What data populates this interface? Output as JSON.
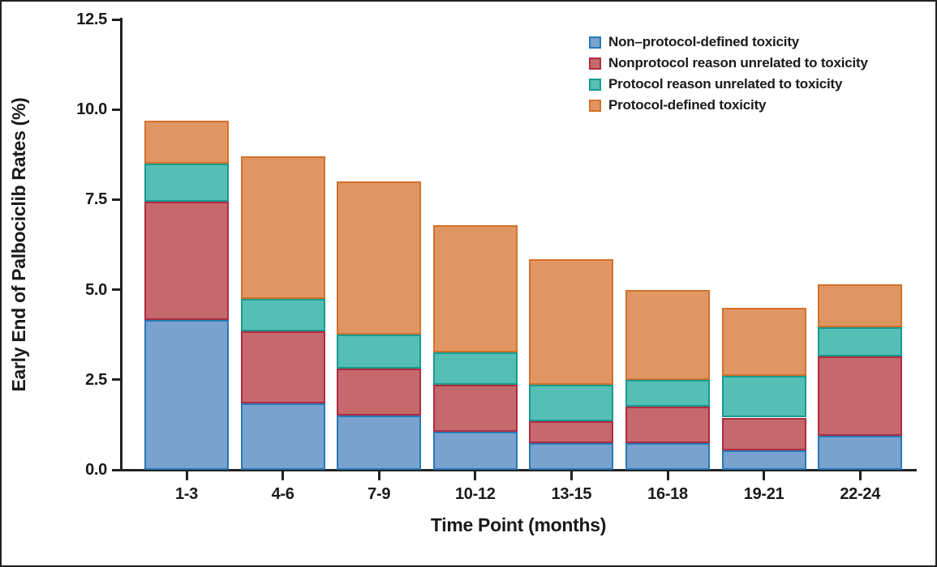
{
  "chart_data": {
    "type": "bar",
    "stacked": true,
    "title": "",
    "xlabel": "Time Point (months)",
    "ylabel": "Early End of Palbociclib Rates (%)",
    "categories": [
      "1-3",
      "4-6",
      "7-9",
      "10-12",
      "13-15",
      "16-18",
      "19-21",
      "22-24"
    ],
    "series": [
      {
        "name": "Non–protocol-defined toxicity",
        "fill": "#79A3CE",
        "border": "#2878B8",
        "values": [
          4.15,
          1.85,
          1.5,
          1.05,
          0.75,
          0.75,
          0.55,
          0.95
        ]
      },
      {
        "name": "Nonprotocol reason unrelated to toxicity",
        "fill": "#C5696D",
        "border": "#AF2B42",
        "values": [
          3.3,
          2.0,
          1.3,
          1.3,
          0.6,
          1.0,
          0.9,
          2.2
        ]
      },
      {
        "name": "Protocol reason unrelated to toxicity",
        "fill": "#56BFB5",
        "border": "#169B90",
        "values": [
          1.05,
          0.9,
          0.95,
          0.9,
          1.0,
          0.75,
          1.15,
          0.8
        ]
      },
      {
        "name": "Protocol-defined toxicity",
        "fill": "#E09663",
        "border": "#D4712B",
        "values": [
          1.2,
          3.95,
          4.25,
          3.55,
          3.5,
          2.5,
          1.9,
          1.2
        ]
      }
    ],
    "bar_totals": [
      9.7,
      8.7,
      8.0,
      6.8,
      5.85,
      5.0,
      4.5,
      5.15
    ],
    "ylim": [
      0,
      12.5
    ],
    "y_ticks": [
      0,
      2.5,
      5,
      7.5,
      10,
      12.5
    ],
    "y_tick_labels": [
      "0.0",
      "2.5",
      "5.0",
      "7.5",
      "10.0",
      "12.5"
    ],
    "grid": false,
    "legend_position": "top-right"
  }
}
